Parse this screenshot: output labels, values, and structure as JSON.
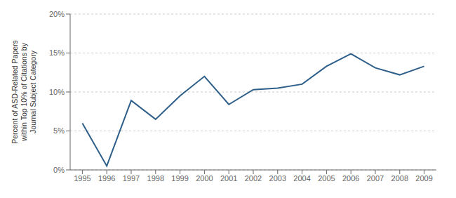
{
  "chart_data": {
    "type": "line",
    "ylabel": "Percent of ASD-Related Papers\nwithin Top 10% of Citations by\nJournal Subject Category",
    "x": [
      1995,
      1996,
      1997,
      1998,
      1999,
      2000,
      2001,
      2002,
      2003,
      2004,
      2005,
      2006,
      2007,
      2008,
      2009
    ],
    "values": [
      0.06,
      0.005,
      0.089,
      0.065,
      0.095,
      0.12,
      0.084,
      0.103,
      0.105,
      0.11,
      0.133,
      0.149,
      0.131,
      0.122,
      0.133
    ],
    "color": "#2e5f8a",
    "xlim": [
      1994.5,
      2009.5
    ],
    "xticks": [
      1995,
      1996,
      1997,
      1998,
      1999,
      2000,
      2001,
      2002,
      2003,
      2004,
      2005,
      2006,
      2007,
      2008,
      2009
    ],
    "ylim": [
      0,
      0.2
    ],
    "yticks": [
      {
        "value": 0,
        "label": "0%"
      },
      {
        "value": 0.05,
        "label": "5%"
      },
      {
        "value": 0.1,
        "label": "10%"
      },
      {
        "value": 0.15,
        "label": "15%"
      },
      {
        "value": 0.2,
        "label": "20%"
      }
    ],
    "grid": true
  }
}
